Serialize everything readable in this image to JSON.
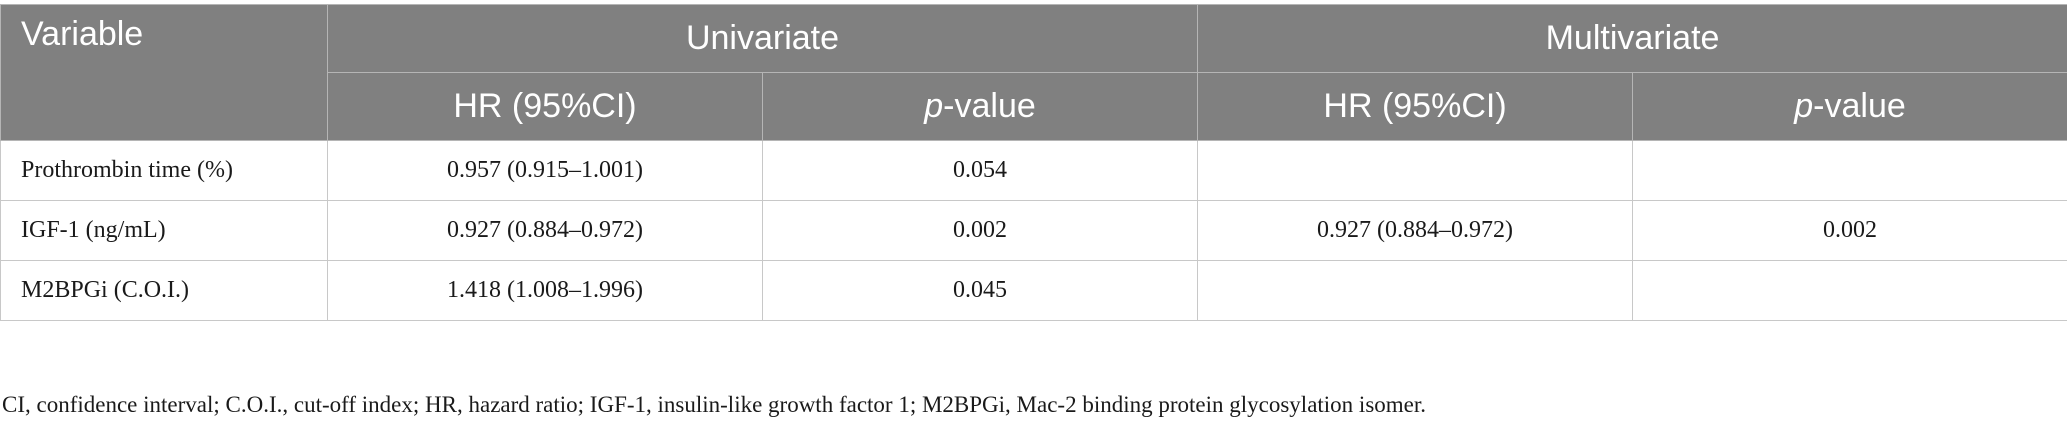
{
  "table": {
    "header": {
      "variable": "Variable",
      "groups": [
        "Univariate",
        "Multivariate"
      ],
      "subcolumns": {
        "hr": "HR (95%CI)",
        "p_prefix": "p",
        "p_suffix": "-value"
      }
    },
    "rows": [
      {
        "variable": "Prothrombin time (%)",
        "uni_hr": "0.957 (0.915–1.001)",
        "uni_p": "0.054",
        "multi_hr": "",
        "multi_p": ""
      },
      {
        "variable": "IGF-1 (ng/mL)",
        "uni_hr": "0.927 (0.884–0.972)",
        "uni_p": "0.002",
        "multi_hr": "0.927 (0.884–0.972)",
        "multi_p": "0.002"
      },
      {
        "variable": "M2BPGi (C.O.I.)",
        "uni_hr": "1.418 (1.008–1.996)",
        "uni_p": "0.045",
        "multi_hr": "",
        "multi_p": ""
      }
    ]
  },
  "footnote": "CI, confidence interval; C.O.I., cut-off index; HR, hazard ratio; IGF-1, insulin-like growth factor 1; M2BPGi, Mac-2 binding protein glycosylation isomer.",
  "colors": {
    "header_bg": "#808080",
    "header_text": "#ffffff",
    "grid": "#c8c8c8"
  }
}
